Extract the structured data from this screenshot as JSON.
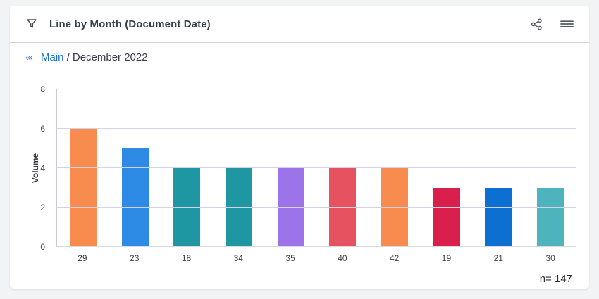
{
  "header": {
    "title": "Line by Month (Document Date)"
  },
  "breadcrumb": {
    "back_glyph": "‹‹‹",
    "link": "Main",
    "separator": "/",
    "current": "December 2022"
  },
  "footer": {
    "n_label": "n= 147"
  },
  "colors": {
    "link_blue": "#1673d2",
    "back_chevron_blue": "#5587dd",
    "grid": "#d2d2e2",
    "axis": "#c9c9dc",
    "title_text": "#3a3f46",
    "tick_text": "#4a4a55"
  },
  "chart_data": {
    "type": "bar",
    "title": "Line by Month (Document Date)",
    "subtitle": "Main / December 2022",
    "categories": [
      "29",
      "23",
      "18",
      "34",
      "35",
      "40",
      "42",
      "19",
      "21",
      "30"
    ],
    "values": [
      6,
      5,
      4,
      4,
      4,
      4,
      4,
      3,
      3,
      3
    ],
    "bar_colors": [
      "#F78C4E",
      "#2E8BE5",
      "#1F97A2",
      "#1F97A2",
      "#9C73E8",
      "#E6525F",
      "#F78C4E",
      "#D9204C",
      "#0B70D2",
      "#4DB3BD"
    ],
    "xlabel": "",
    "ylabel": "Volume",
    "ylim": [
      0,
      8
    ],
    "yticks": [
      0,
      2,
      4,
      6,
      8
    ],
    "grid": "horizontal",
    "legend": "none",
    "annotation": "n= 147",
    "total_n": 147
  }
}
